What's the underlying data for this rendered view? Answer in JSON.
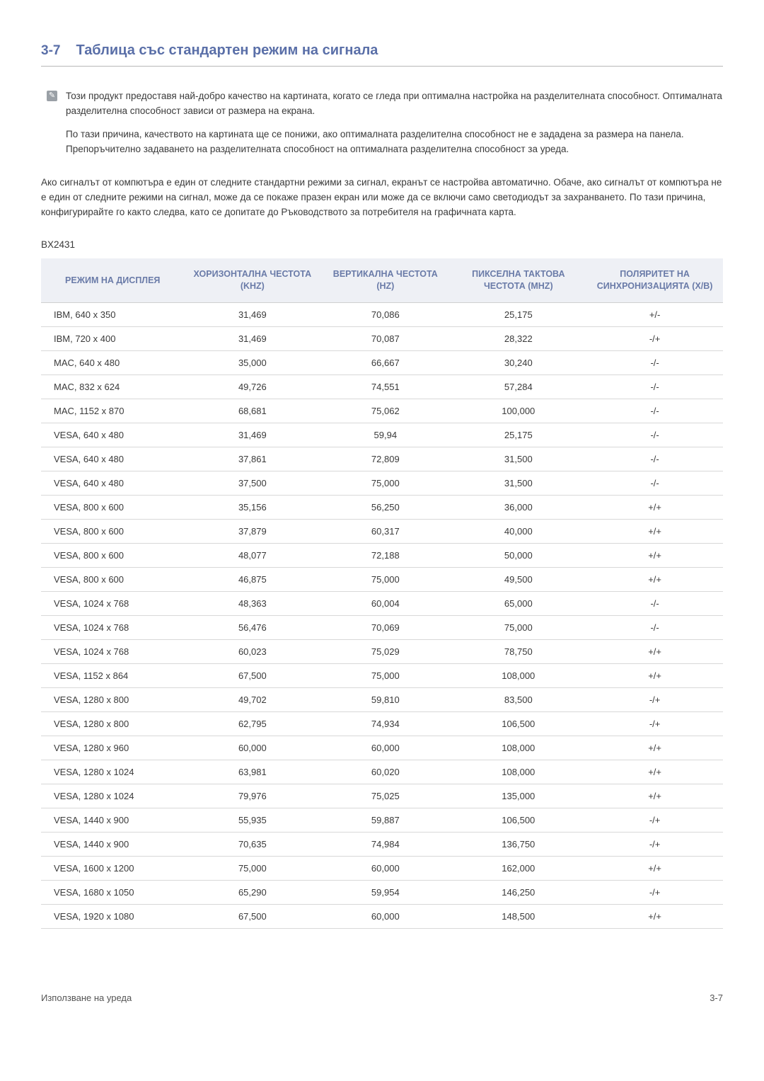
{
  "heading": {
    "number": "3-7",
    "title": "Таблица със стандартен режим на сигнала"
  },
  "note": {
    "p1": "Този продукт предоставя най-добро качество на картината, когато се гледа при оптимална настройка на разделителната способност. Оптималната разделителна способност зависи от размера на екрана.",
    "p2": "По тази причина, качеството на картината ще се понижи, ако оптималната разделителна способност не е зададена за размера на панела. Препоръчително задаването на разделителната способност на оптималната разделителна способност за уреда."
  },
  "body_para": "Ако сигналът от компютъра е един от следните стандартни режими за сигнал, екранът се настройва автоматично. Обаче, ако сигналът от компютъра не е един от следните режими на сигнал, може да се покаже празен екран или може да се включи само светодиодът за захранването. По тази причина, конфигурирайте го както следва, като се допитате до Ръководството за потребителя на графичната карта.",
  "model": "BX2431",
  "table": {
    "headers": {
      "c1": "РЕЖИМ НА ДИСПЛЕЯ",
      "c2": "ХОРИЗОНТАЛНА ЧЕСТОТА (KHZ)",
      "c3": "ВЕРТИКАЛНА ЧЕСТОТА (HZ)",
      "c4": "ПИКСЕЛНА ТАКТОВА ЧЕСТОТА (MHZ)",
      "c5": "ПОЛЯРИТЕТ НА СИНХРОНИЗАЦИЯТА (Х/В)"
    },
    "rows": [
      [
        "IBM, 640 x 350",
        "31,469",
        "70,086",
        "25,175",
        "+/-"
      ],
      [
        "IBM, 720 x 400",
        "31,469",
        "70,087",
        "28,322",
        "-/+"
      ],
      [
        "MAC, 640 x 480",
        "35,000",
        "66,667",
        "30,240",
        "-/-"
      ],
      [
        "MAC, 832 x 624",
        "49,726",
        "74,551",
        "57,284",
        "-/-"
      ],
      [
        "MAC, 1152 x 870",
        "68,681",
        "75,062",
        "100,000",
        "-/-"
      ],
      [
        "VESA, 640 x 480",
        "31,469",
        "59,94",
        "25,175",
        "-/-"
      ],
      [
        "VESA, 640 x 480",
        "37,861",
        "72,809",
        "31,500",
        "-/-"
      ],
      [
        "VESA, 640 x 480",
        "37,500",
        "75,000",
        "31,500",
        "-/-"
      ],
      [
        "VESA, 800 x 600",
        "35,156",
        "56,250",
        "36,000",
        "+/+"
      ],
      [
        "VESA, 800 x 600",
        "37,879",
        "60,317",
        "40,000",
        "+/+"
      ],
      [
        "VESA, 800 x 600",
        "48,077",
        "72,188",
        "50,000",
        "+/+"
      ],
      [
        "VESA, 800 x 600",
        "46,875",
        "75,000",
        "49,500",
        "+/+"
      ],
      [
        "VESA, 1024 x 768",
        "48,363",
        "60,004",
        "65,000",
        "-/-"
      ],
      [
        "VESA, 1024 x 768",
        "56,476",
        "70,069",
        "75,000",
        "-/-"
      ],
      [
        "VESA, 1024 x 768",
        "60,023",
        "75,029",
        "78,750",
        "+/+"
      ],
      [
        "VESA, 1152 x 864",
        "67,500",
        "75,000",
        "108,000",
        "+/+"
      ],
      [
        "VESA, 1280 x 800",
        "49,702",
        "59,810",
        "83,500",
        "-/+"
      ],
      [
        "VESA, 1280 x 800",
        "62,795",
        "74,934",
        "106,500",
        "-/+"
      ],
      [
        "VESA, 1280 x 960",
        "60,000",
        "60,000",
        "108,000",
        "+/+"
      ],
      [
        "VESA, 1280 x 1024",
        "63,981",
        "60,020",
        "108,000",
        "+/+"
      ],
      [
        "VESA, 1280 x 1024",
        "79,976",
        "75,025",
        "135,000",
        "+/+"
      ],
      [
        "VESA, 1440 x 900",
        "55,935",
        "59,887",
        "106,500",
        "-/+"
      ],
      [
        "VESA, 1440 x 900",
        "70,635",
        "74,984",
        "136,750",
        "-/+"
      ],
      [
        "VESA, 1600 x 1200",
        "75,000",
        "60,000",
        "162,000",
        "+/+"
      ],
      [
        "VESA, 1680 x 1050",
        "65,290",
        "59,954",
        "146,250",
        "-/+"
      ],
      [
        "VESA, 1920 x 1080",
        "67,500",
        "60,000",
        "148,500",
        "+/+"
      ]
    ],
    "col_widths": [
      "21%",
      "20%",
      "19%",
      "20%",
      "20%"
    ],
    "header_bg": "#eef0f5",
    "header_color": "#6a7ba8",
    "border_color": "#d8d8d8",
    "row_font_color": "#3a3a3a"
  },
  "footer": {
    "left": "Използване на уреда",
    "right": "3-7"
  },
  "colors": {
    "accent": "#5a6fa8",
    "text": "#3a3a3a",
    "background": "#ffffff"
  }
}
